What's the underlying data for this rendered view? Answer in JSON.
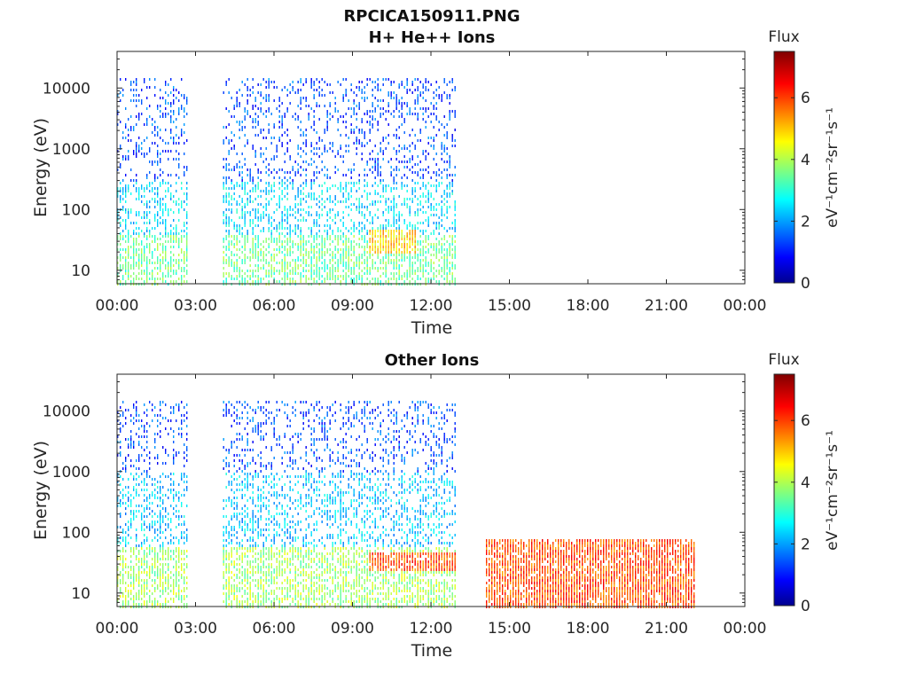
{
  "figure": {
    "title": "RPCICA150911.PNG"
  },
  "colorbar": {
    "label": "Flux",
    "unit": "eV⁻¹cm⁻²sr⁻¹s⁻¹",
    "ticks": [
      "0",
      "2",
      "4",
      "6"
    ],
    "range": [
      0,
      7.5
    ],
    "colormap": "jet"
  },
  "chart_data": [
    {
      "type": "heatmap",
      "title": "H+ He++ Ions",
      "xlabel": "Time",
      "ylabel": "Energy (eV)",
      "x_ticks": [
        "00:00",
        "03:00",
        "06:00",
        "09:00",
        "12:00",
        "15:00",
        "18:00",
        "21:00",
        "00:00"
      ],
      "xlim_hours": [
        0,
        24
      ],
      "y_ticks": [
        "10",
        "100",
        "1000",
        "10000"
      ],
      "ylim": [
        6,
        40000
      ],
      "y_scale": "log",
      "data_intervals_hours": [
        [
          0,
          2.65
        ],
        [
          4.05,
          12.9
        ]
      ],
      "energy_cutoff_eV": 15000,
      "flux_features": [
        {
          "time_hours": [
            0,
            12.9
          ],
          "energy_eV": [
            6,
            40
          ],
          "flux": 3.6
        },
        {
          "time_hours": [
            0,
            12.9
          ],
          "energy_eV": [
            40,
            300
          ],
          "flux": 2.6
        },
        {
          "time_hours": [
            0,
            12.9
          ],
          "energy_eV": [
            300,
            15000
          ],
          "flux": 1.5
        },
        {
          "time_hours": [
            9.6,
            11.4
          ],
          "energy_eV": [
            20,
            50
          ],
          "flux": 5.0
        }
      ]
    },
    {
      "type": "heatmap",
      "title": "Other Ions",
      "xlabel": "Time",
      "ylabel": "Energy (eV)",
      "x_ticks": [
        "00:00",
        "03:00",
        "06:00",
        "09:00",
        "12:00",
        "15:00",
        "18:00",
        "21:00",
        "00:00"
      ],
      "xlim_hours": [
        0,
        24
      ],
      "y_ticks": [
        "10",
        "100",
        "1000",
        "10000"
      ],
      "ylim": [
        6,
        40000
      ],
      "y_scale": "log",
      "data_intervals_hours": [
        [
          0,
          2.65
        ],
        [
          4.05,
          12.9
        ],
        [
          14.1,
          22.1
        ]
      ],
      "flux_features": [
        {
          "time_hours": [
            0,
            12.9
          ],
          "energy_eV": [
            6,
            60
          ],
          "flux": 4.0
        },
        {
          "time_hours": [
            0,
            12.9
          ],
          "energy_eV": [
            60,
            1000
          ],
          "flux": 2.4
        },
        {
          "time_hours": [
            0,
            12.9
          ],
          "energy_eV": [
            1000,
            15000
          ],
          "flux": 1.5
        },
        {
          "time_hours": [
            9.6,
            12.9
          ],
          "energy_eV": [
            25,
            50
          ],
          "flux": 6.0
        },
        {
          "time_hours": [
            14.1,
            22.1
          ],
          "energy_eV": [
            6,
            80
          ],
          "flux": 6.0
        }
      ]
    }
  ]
}
